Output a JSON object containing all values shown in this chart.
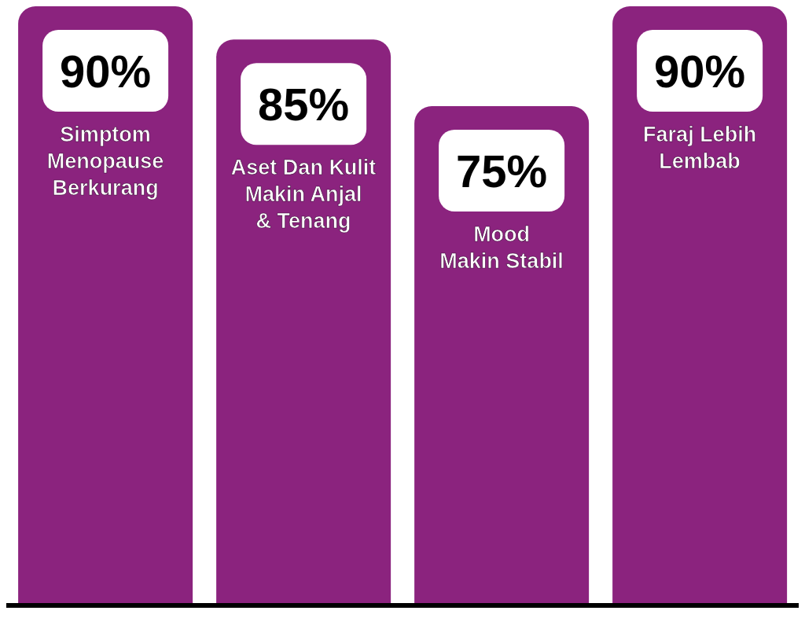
{
  "chart_data": {
    "type": "bar",
    "categories": [
      "Simptom\nMenopause\nBerkurang",
      "Aset Dan Kulit\nMakin Anjal\n& Tenang",
      "Mood\nMakin Stabil",
      "Faraj Lebih\nLembab"
    ],
    "values": [
      90,
      85,
      75,
      90
    ],
    "value_labels": [
      "90%",
      "85%",
      "75%",
      "90%"
    ],
    "color": "#8b237e",
    "ylim": [
      0,
      90
    ],
    "grid": false,
    "legend": false
  }
}
